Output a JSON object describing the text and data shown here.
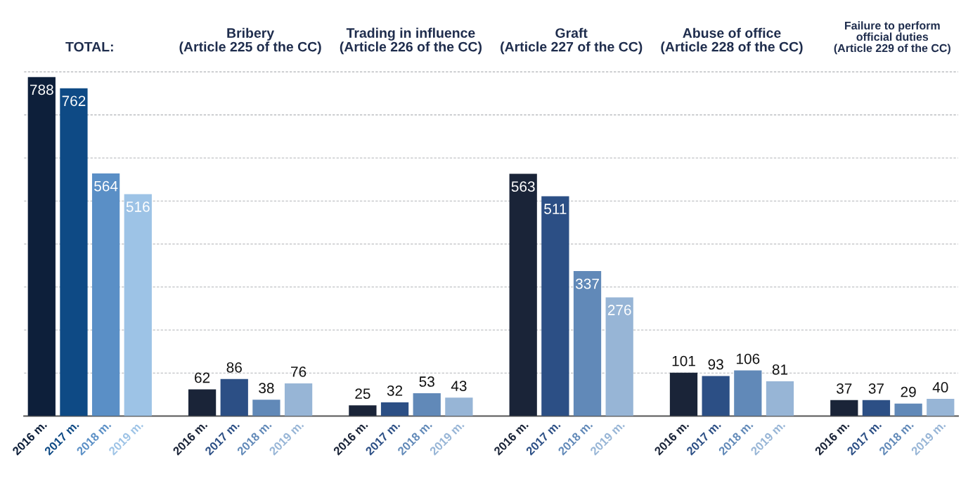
{
  "chart_data": {
    "type": "bar",
    "categories": [
      "2016 m.",
      "2017 m.",
      "2018 m.",
      "2019 m.",
      null,
      "2016 m.",
      "2017 m.",
      "2018 m.",
      "2019 m.",
      null,
      "2016 m.",
      "2017 m.",
      "2018 m.",
      "2019 m.",
      null,
      "2016 m.",
      "2017 m.",
      "2018 m.",
      "2019 m.",
      null,
      "2016 m.",
      "2017 m.",
      "2018 m.",
      "2019 m.",
      null,
      "2016 m.",
      "2017 m.",
      "2018 m.",
      "2019 m."
    ],
    "values": [
      788,
      762,
      564,
      516,
      null,
      62,
      86,
      38,
      76,
      null,
      25,
      32,
      53,
      43,
      null,
      563,
      511,
      337,
      276,
      null,
      101,
      93,
      106,
      81,
      null,
      37,
      37,
      29,
      40
    ],
    "colors": [
      "#0d1f3a",
      "#0e4a85",
      "#5a8fc6",
      "#9dc3e6",
      null,
      "#1a2438",
      "#2c4f85",
      "#6189b8",
      "#97b5d6",
      null,
      "#1a2438",
      "#2c4f85",
      "#6189b8",
      "#97b5d6",
      null,
      "#1a2438",
      "#2c4f85",
      "#6189b8",
      "#97b5d6",
      null,
      "#1a2438",
      "#2c4f85",
      "#6189b8",
      "#97b5d6",
      null,
      "#1a2438",
      "#2c4f85",
      "#6189b8",
      "#97b5d6"
    ],
    "annotations": [
      "TOTAL:",
      "Bribery\n(Article 225 of the CC)",
      "Trading in influence\n(Article 226 of the CC)",
      "Graft\n(Article 227 of the CC)",
      "Abuse of office\n(Article 228 of the CC)",
      "Failure to perform\nofficial duties\n(Article 229 of the CC)"
    ],
    "data_labels": true,
    "grid": "y",
    "tick_labels": "x"
  }
}
